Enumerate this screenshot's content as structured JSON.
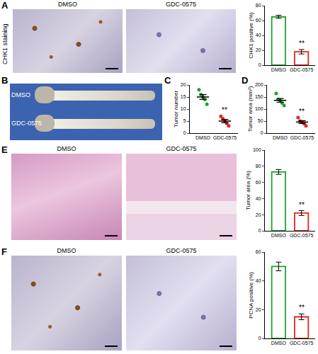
{
  "chart_data": [
    {
      "type": "bar",
      "ylabel": "CHK1 positive (%)",
      "categories": [
        "DMSO",
        "GDC-0575"
      ],
      "values": [
        65,
        18
      ],
      "errors": [
        2,
        3
      ],
      "colors": [
        "#1fa22e",
        "#e3261f"
      ],
      "ylim": [
        0,
        80
      ],
      "yticks": [
        0,
        20,
        40,
        60,
        80
      ],
      "annotations": [
        {
          "category": "GDC-0575",
          "text": "**"
        }
      ]
    },
    {
      "panel": "C",
      "type": "scatter",
      "ylabel": "Tumor number",
      "categories": [
        "DMSO",
        "GDC-0575"
      ],
      "points": [
        [
          18,
          16,
          15,
          14,
          12
        ],
        [
          7,
          6,
          5,
          4,
          3
        ]
      ],
      "means": [
        15,
        5
      ],
      "errors": [
        1,
        0.7
      ],
      "colors": [
        "#1fa22e",
        "#e3261f"
      ],
      "ylim": [
        0,
        20
      ],
      "yticks": [
        0,
        5,
        10,
        15,
        20
      ],
      "annotations": [
        {
          "category": "GDC-0575",
          "text": "**"
        }
      ]
    },
    {
      "panel": "D",
      "type": "scatter",
      "ylabel": "Tumor area (mm²)",
      "categories": [
        "DMSO",
        "GDC-0575"
      ],
      "points": [
        [
          165,
          140,
          135,
          125,
          115
        ],
        [
          65,
          50,
          45,
          40,
          30
        ]
      ],
      "means": [
        136,
        46
      ],
      "errors": [
        8,
        6
      ],
      "colors": [
        "#1fa22e",
        "#e3261f"
      ],
      "ylim": [
        0,
        200
      ],
      "yticks": [
        0,
        50,
        100,
        150,
        200
      ],
      "annotations": [
        {
          "category": "GDC-0575",
          "text": "**"
        }
      ]
    },
    {
      "type": "bar",
      "ylabel": "Tumor area (%)",
      "categories": [
        "DMSO",
        "GDC-0575"
      ],
      "values": [
        73,
        22
      ],
      "errors": [
        3,
        3
      ],
      "colors": [
        "#1fa22e",
        "#e3261f"
      ],
      "ylim": [
        0,
        100
      ],
      "yticks": [
        0,
        20,
        40,
        60,
        80,
        100
      ],
      "annotations": [
        {
          "category": "GDC-0575",
          "text": "**"
        }
      ]
    },
    {
      "type": "bar",
      "ylabel": "PCNA positive (%)",
      "categories": [
        "DMSO",
        "GDC-0575"
      ],
      "values": [
        50,
        15
      ],
      "errors": [
        3,
        2
      ],
      "colors": [
        "#1fa22e",
        "#e3261f"
      ],
      "ylim": [
        0,
        60
      ],
      "yticks": [
        0,
        20,
        40,
        60
      ],
      "annotations": [
        {
          "category": "GDC-0575",
          "text": "**"
        }
      ]
    }
  ],
  "image_panels": [
    {
      "panel": "A",
      "row_label": "CHK1 staining",
      "images": [
        "DMSO",
        "GDC-0575"
      ]
    },
    {
      "panel": "B",
      "images": [
        "DMSO",
        "GDC-0575"
      ]
    },
    {
      "panel": "E",
      "images": [
        "DMSO",
        "GDC-0575"
      ]
    },
    {
      "panel": "F",
      "images": [
        "DMSO",
        "GDC-0575"
      ]
    }
  ]
}
